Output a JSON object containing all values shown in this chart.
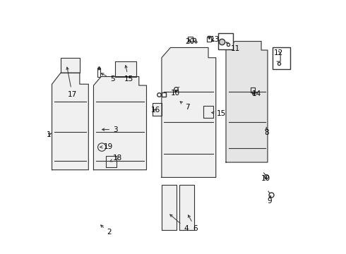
{
  "bg_color": "#ffffff",
  "line_color": "#333333",
  "label_color": "#000000",
  "fig_width": 4.9,
  "fig_height": 3.6,
  "dpi": 100
}
